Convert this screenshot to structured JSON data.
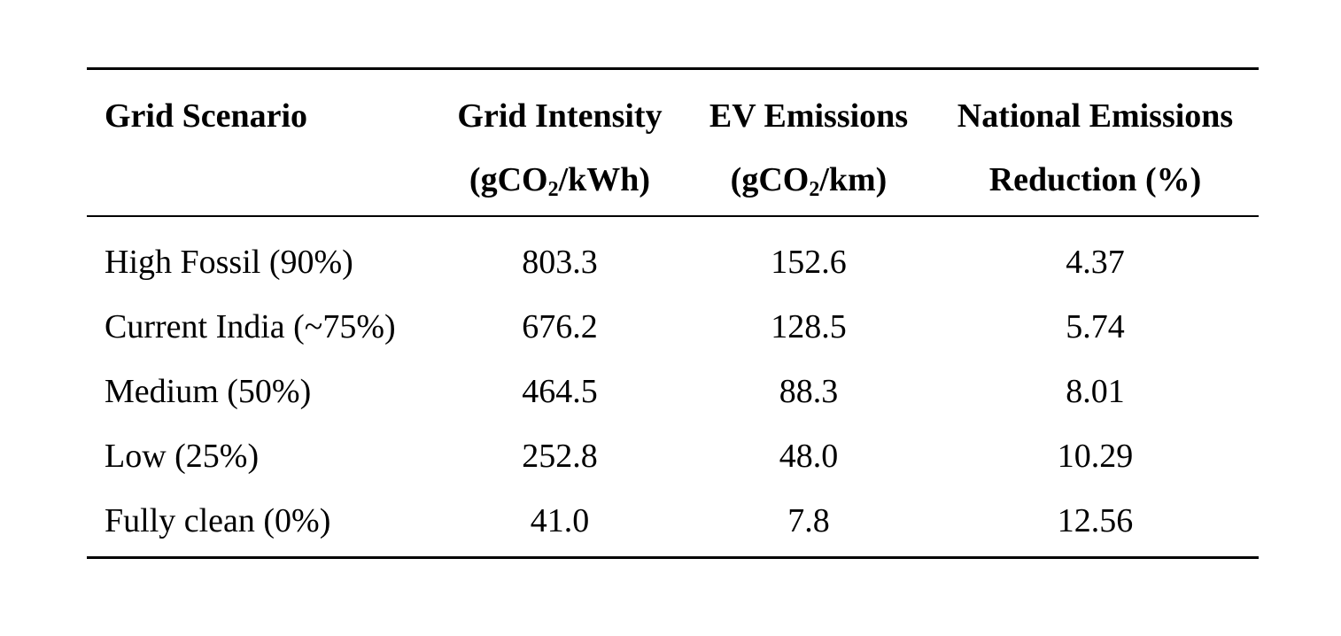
{
  "table": {
    "headers": [
      {
        "line1": "Grid Scenario",
        "line2": ""
      },
      {
        "line1": "Grid Intensity",
        "line2_pre": "(gCO",
        "line2_sub": "2",
        "line2_post": "/kWh)"
      },
      {
        "line1": "EV Emissions",
        "line2_pre": "(gCO",
        "line2_sub": "2",
        "line2_post": "/km)"
      },
      {
        "line1": "National Emissions",
        "line2": "Reduction (%)"
      }
    ],
    "rows": [
      {
        "scenario": "High Fossil (90%)",
        "grid_intensity": "803.3",
        "ev_emissions": "152.6",
        "reduction": "4.37"
      },
      {
        "scenario": "Current India (~75%)",
        "grid_intensity": "676.2",
        "ev_emissions": "128.5",
        "reduction": "5.74"
      },
      {
        "scenario": "Medium (50%)",
        "grid_intensity": "464.5",
        "ev_emissions": "88.3",
        "reduction": "8.01"
      },
      {
        "scenario": "Low (25%)",
        "grid_intensity": "252.8",
        "ev_emissions": "48.0",
        "reduction": "10.29"
      },
      {
        "scenario": "Fully clean (0%)",
        "grid_intensity": "41.0",
        "ev_emissions": "7.8",
        "reduction": "12.56"
      }
    ]
  }
}
